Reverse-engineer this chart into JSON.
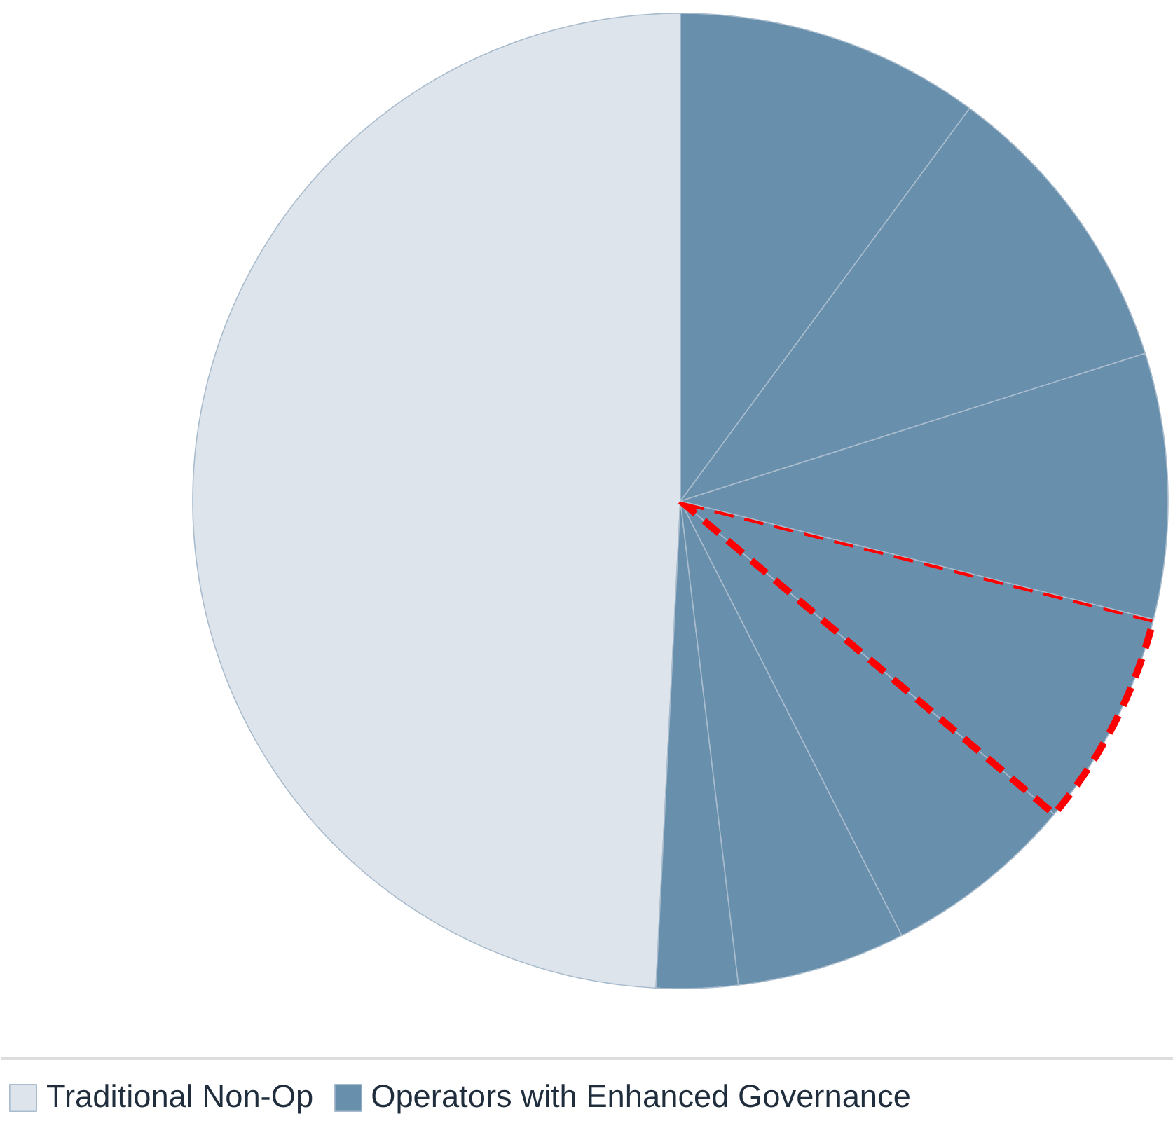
{
  "chart_data": {
    "type": "pie",
    "categories": [
      "Traditional Non-Op",
      "Operators with Enhanced Governance",
      null,
      null,
      null,
      null,
      null,
      null
    ],
    "values": [
      49.2,
      2.7,
      5.6,
      6.4,
      7.2,
      8.8,
      10.0,
      10.1
    ],
    "colors": [
      "#dde4ec",
      "#6890ad",
      "#6890ad",
      "#6890ad",
      "#6890ad",
      "#6890ad",
      "#6890ad",
      "#6890ad"
    ],
    "legend": "bottom"
  }
}
